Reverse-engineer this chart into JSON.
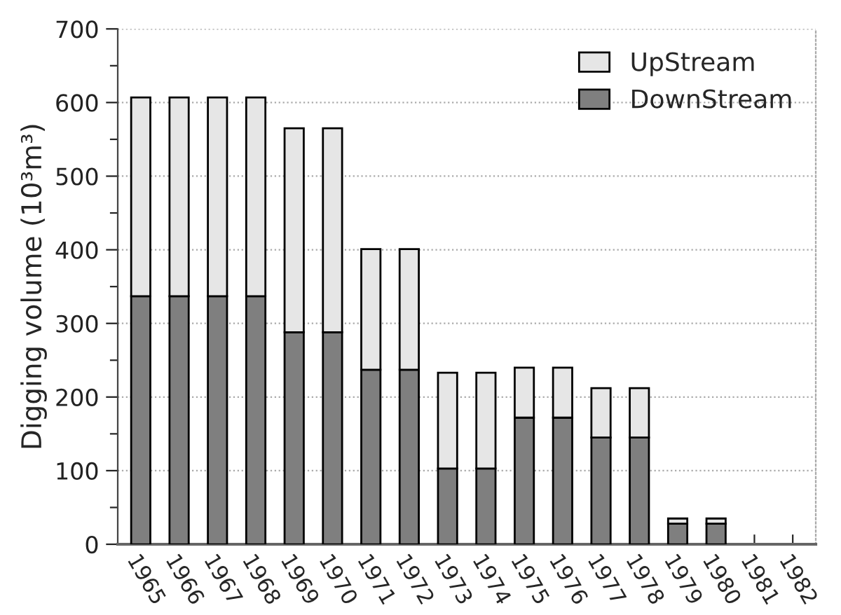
{
  "chart_data": {
    "type": "bar",
    "stacked": true,
    "ylabel": "Digging volume (10³m³)",
    "categories": [
      "1965",
      "1966",
      "1967",
      "1968",
      "1969",
      "1970",
      "1971",
      "1972",
      "1973",
      "1974",
      "1975",
      "1976",
      "1977",
      "1978",
      "1979",
      "1980",
      "1981",
      "1982"
    ],
    "series": [
      {
        "name": "DownStream",
        "color": "#7f7f7f",
        "values": [
          337,
          337,
          337,
          337,
          288,
          288,
          237,
          237,
          103,
          103,
          172,
          172,
          145,
          145,
          28,
          28,
          0,
          0
        ]
      },
      {
        "name": "UpStream",
        "color": "#e6e6e6",
        "values": [
          270,
          270,
          270,
          270,
          277,
          277,
          164,
          164,
          130,
          130,
          68,
          68,
          67,
          67,
          7,
          7,
          0,
          0
        ]
      }
    ],
    "ylim": [
      0,
      700
    ],
    "yticks": [
      0,
      {
        "value": 50,
        "label": null
      },
      100,
      {
        "value": 150,
        "label": null
      },
      200,
      {
        "value": 250,
        "label": null
      },
      300,
      {
        "value": 350,
        "label": null
      },
      400,
      {
        "value": 450,
        "label": null
      },
      500,
      {
        "value": 550,
        "label": null
      },
      600,
      {
        "value": 650,
        "label": null
      },
      700
    ],
    "grid": "y",
    "legend": "top right"
  }
}
